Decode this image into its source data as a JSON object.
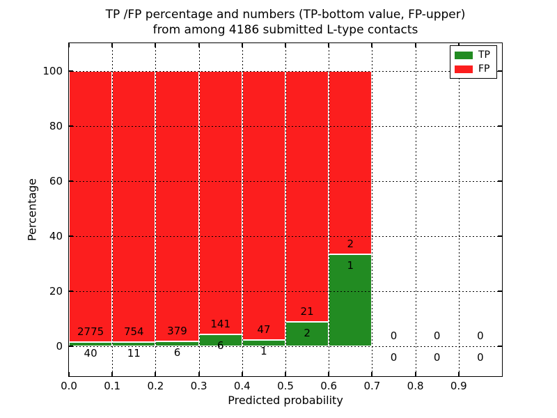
{
  "title": {
    "line1": "TP /FP percentage and numbers (TP-bottom value, FP-upper)",
    "line2": "from among 4186 submitted L-type contacts"
  },
  "chart_data": {
    "type": "bar",
    "stacked": true,
    "title": "TP /FP percentage and numbers (TP-bottom value, FP-upper) from among 4186 submitted L-type contacts",
    "xlabel": "Predicted probability",
    "ylabel": "Percentage",
    "x_ticks": [
      "0.0",
      "0.1",
      "0.2",
      "0.3",
      "0.4",
      "0.5",
      "0.6",
      "0.7",
      "0.8",
      "0.9"
    ],
    "y_ticks": [
      "0",
      "20",
      "40",
      "60",
      "80",
      "100"
    ],
    "y_tick_values": [
      0,
      20,
      40,
      60,
      80,
      100
    ],
    "xlim": [
      0.0,
      1.0
    ],
    "ylim": [
      -11,
      110
    ],
    "bin_width": 0.1,
    "bin_starts": [
      0.0,
      0.1,
      0.2,
      0.3,
      0.4,
      0.5,
      0.6,
      0.7,
      0.8,
      0.9
    ],
    "series": [
      {
        "name": "TP",
        "color": "#228b22",
        "counts": [
          40,
          11,
          6,
          6,
          1,
          2,
          1,
          0,
          0,
          0
        ]
      },
      {
        "name": "FP",
        "color": "#fc1e1e",
        "counts": [
          2775,
          754,
          379,
          141,
          47,
          21,
          2,
          0,
          0,
          0
        ]
      }
    ],
    "tp_percentages": [
      1.42,
      1.44,
      1.56,
      4.08,
      2.08,
      8.7,
      33.33,
      0,
      0,
      0
    ],
    "bar_total_percent": 100,
    "total_contacts": 4186,
    "grid": "dotted",
    "legend": {
      "position": "upper-right",
      "entries": [
        {
          "label": "TP",
          "color": "#228b22"
        },
        {
          "label": "FP",
          "color": "#fc1e1e"
        }
      ]
    }
  },
  "colors": {
    "tp": "#228b22",
    "fp": "#fc1e1e",
    "bar_edge": "#ffffff",
    "grid": "#000000",
    "background": "#ffffff"
  }
}
